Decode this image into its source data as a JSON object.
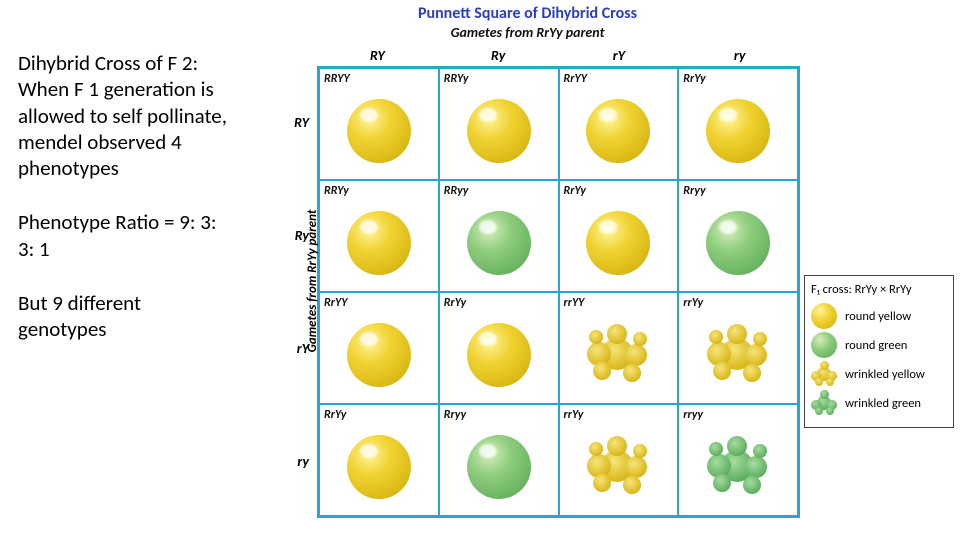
{
  "left": {
    "p1": "Dihybrid Cross of F 2:\nWhen F 1 generation is allowed to self pollinate, mendel observed 4 phenotypes",
    "p2": "Phenotype Ratio = 9: 3: 3: 1",
    "p3": "But 9 different genotypes"
  },
  "punnett": {
    "title": "Punnett Square of Dihybrid Cross",
    "subtitle": "Gametes from RrYy parent",
    "ylabel": "Gametes from RrYy parent",
    "col_headers": [
      "RY",
      "Ry",
      "rY",
      "ry"
    ],
    "row_headers": [
      "RY",
      "Ry",
      "rY",
      "ry"
    ],
    "border_color": "#2aa6c9",
    "cells": [
      [
        {
          "genotype": "RRYY",
          "phenotype": "round-yellow"
        },
        {
          "genotype": "RRYy",
          "phenotype": "round-yellow"
        },
        {
          "genotype": "RrYY",
          "phenotype": "round-yellow"
        },
        {
          "genotype": "RrYy",
          "phenotype": "round-yellow"
        }
      ],
      [
        {
          "genotype": "RRYy",
          "phenotype": "round-yellow"
        },
        {
          "genotype": "RRyy",
          "phenotype": "round-green"
        },
        {
          "genotype": "RrYy",
          "phenotype": "round-yellow"
        },
        {
          "genotype": "Rryy",
          "phenotype": "round-green"
        }
      ],
      [
        {
          "genotype": "RrYY",
          "phenotype": "round-yellow"
        },
        {
          "genotype": "RrYy",
          "phenotype": "round-yellow"
        },
        {
          "genotype": "rrYY",
          "phenotype": "wrinkled-yellow"
        },
        {
          "genotype": "rrYy",
          "phenotype": "wrinkled-yellow"
        }
      ],
      [
        {
          "genotype": "RrYy",
          "phenotype": "round-yellow"
        },
        {
          "genotype": "Rryy",
          "phenotype": "round-green"
        },
        {
          "genotype": "rrYy",
          "phenotype": "wrinkled-yellow"
        },
        {
          "genotype": "rryy",
          "phenotype": "wrinkled-green"
        }
      ]
    ]
  },
  "legend": {
    "cross_label": "F₁ cross: RrYy × RrYy",
    "items": [
      {
        "phenotype": "round-yellow",
        "label": "round yellow"
      },
      {
        "phenotype": "round-green",
        "label": "round green"
      },
      {
        "phenotype": "wrinkled-yellow",
        "label": "wrinkled yellow"
      },
      {
        "phenotype": "wrinkled-green",
        "label": "wrinkled green"
      }
    ]
  },
  "colors": {
    "yellow": "#e8c51f",
    "green": "#6fbf6a",
    "title": "#2a3fbf"
  }
}
